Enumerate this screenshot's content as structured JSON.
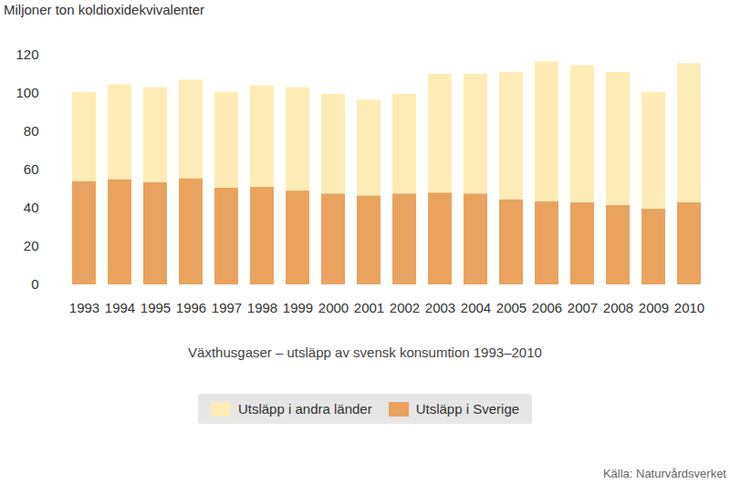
{
  "chart_data": {
    "type": "bar",
    "stacked": true,
    "title": "Växthusgaser – utsläpp av svensk konsumtion 1993–2010",
    "y_label": "Miljoner ton koldioxidekvivalenter",
    "source": "Källa: Naturvårdsverket",
    "categories": [
      "1993",
      "1994",
      "1995",
      "1996",
      "1997",
      "1998",
      "1999",
      "2000",
      "2001",
      "2002",
      "2003",
      "2004",
      "2005",
      "2006",
      "2007",
      "2008",
      "2009",
      "2010"
    ],
    "series": [
      {
        "name": "Utsläpp i Sverige",
        "color": "#e9a35e",
        "values": [
          54,
          55,
          53.5,
          55.5,
          50.5,
          51,
          49,
          47.5,
          46.5,
          47.5,
          48,
          47.5,
          44.5,
          43.5,
          43,
          41.5,
          39.5,
          43
        ]
      },
      {
        "name": "Utsläpp i andra länder",
        "color": "#fdecb5",
        "values": [
          46.5,
          49.5,
          49.5,
          51.5,
          50,
          53,
          54,
          52,
          50,
          52,
          62,
          62.5,
          66.5,
          73,
          71.5,
          69.5,
          61,
          72.5
        ]
      }
    ],
    "ylim": [
      0,
      120
    ],
    "yticks": [
      0,
      20,
      40,
      60,
      80,
      100,
      120
    ],
    "grid": false,
    "legend": "bottom"
  }
}
